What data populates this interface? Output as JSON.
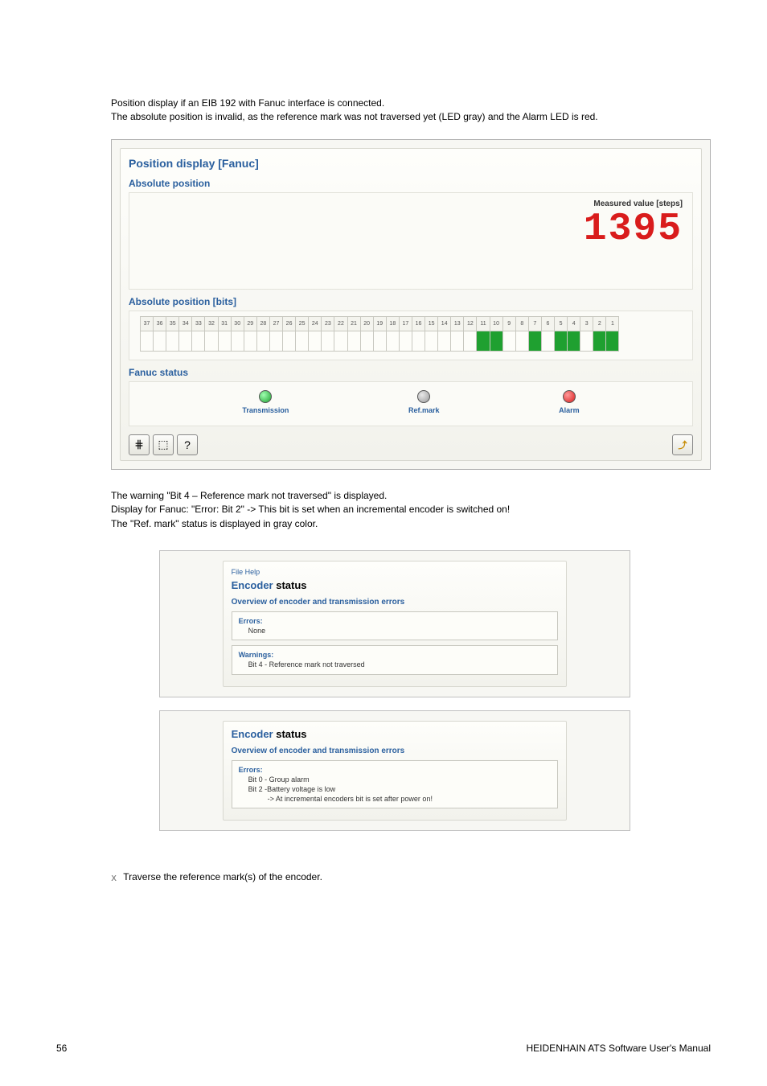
{
  "intro": {
    "line1": "Position display if an EIB 192 with Fanuc interface is connected.",
    "line2": "The absolute position is invalid, as the reference mark was not traversed yet (LED gray) and the Alarm LED is red."
  },
  "main_panel": {
    "title": "Position display [Fanuc]",
    "abs_pos_title": "Absolute position",
    "measured_label": "Measured value [steps]",
    "measured_value": "1395",
    "bits_title": "Absolute position [bits]",
    "bit_numbers": [
      "37",
      "36",
      "35",
      "34",
      "33",
      "32",
      "31",
      "30",
      "29",
      "28",
      "27",
      "26",
      "25",
      "24",
      "23",
      "22",
      "21",
      "20",
      "19",
      "18",
      "17",
      "16",
      "15",
      "14",
      "13",
      "12",
      "11",
      "10",
      "9",
      "8",
      "7",
      "6",
      "5",
      "4",
      "3",
      "2",
      "1"
    ],
    "bit_on_indices": [
      26,
      27,
      30,
      32,
      33,
      35,
      36
    ],
    "fanuc_title": "Fanuc status",
    "status": {
      "transmission": {
        "label": "Transmission",
        "color": "green"
      },
      "refmark": {
        "label": "Ref.mark",
        "color": "gray"
      },
      "alarm": {
        "label": "Alarm",
        "color": "red"
      }
    },
    "toolbar_icons": [
      "⋕",
      "⬚",
      "?"
    ],
    "toolbar_right": "⤴"
  },
  "mid_text": {
    "line1": "The warning \"Bit 4 – Reference mark not traversed\" is displayed.",
    "line2": "Display for Fanuc: \"Error: Bit 2\" -> This bit is set when an incremental encoder is switched on!",
    "line3": "The \"Ref. mark\" status is displayed in gray color."
  },
  "encoder_status1": {
    "menubar": "File   Help",
    "title_a": "Encoder",
    "title_b": " status",
    "overview": "Overview of encoder and transmission errors",
    "errors_label": "Errors:",
    "errors_text": "None",
    "warnings_label": "Warnings:",
    "warnings_text": "Bit 4 - Reference mark not traversed"
  },
  "encoder_status2": {
    "title_a": "Encoder",
    "title_b": " status",
    "overview": "Overview of encoder and transmission errors",
    "errors_label": "Errors:",
    "errors_line1": "Bit 0 - Group alarm",
    "errors_line2": "Bit 2 -Battery voltage is low",
    "errors_line3": "-> At incremental encoders bit is set after power on!"
  },
  "instruction": "Traverse the reference mark(s) of the encoder.",
  "footer": {
    "page": "56",
    "doc": "HEIDENHAIN ATS Software User's Manual"
  }
}
